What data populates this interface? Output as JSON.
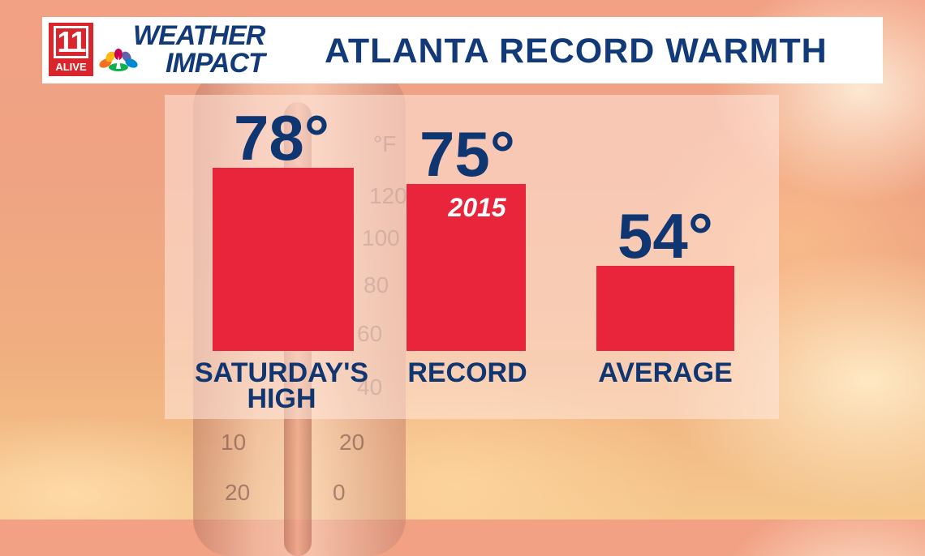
{
  "header": {
    "station_number": "11",
    "station_name": "ALIVE",
    "brand_line1": "WEATHER",
    "brand_line2": "IMPACT",
    "title": "ATLANTA RECORD WARMTH"
  },
  "background": {
    "thermometer_scale": [
      "°F",
      "120",
      "100",
      "80",
      "60",
      "40",
      "10",
      "20",
      "20",
      "0"
    ]
  },
  "colors": {
    "bar": "#e8253a",
    "text": "#0f3670"
  },
  "chart_data": {
    "type": "bar",
    "categories": [
      "SATURDAY'S HIGH",
      "RECORD",
      "AVERAGE"
    ],
    "category_lines": [
      [
        "SATURDAY'S",
        "HIGH"
      ],
      [
        "RECORD"
      ],
      [
        "AVERAGE"
      ]
    ],
    "values": [
      78,
      75,
      54
    ],
    "value_labels": [
      "78°",
      "75°",
      "54°"
    ],
    "annotations": [
      "",
      "2015",
      ""
    ],
    "title": "ATLANTA RECORD WARMTH",
    "xlabel": "",
    "ylabel": "",
    "grid": false,
    "legend": "none"
  }
}
